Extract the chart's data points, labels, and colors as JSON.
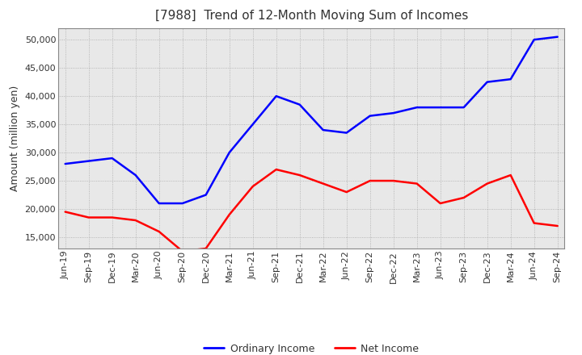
{
  "title": "[7988]  Trend of 12-Month Moving Sum of Incomes",
  "ylabel": "Amount (million yen)",
  "x_labels": [
    "Jun-19",
    "Sep-19",
    "Dec-19",
    "Mar-20",
    "Jun-20",
    "Sep-20",
    "Dec-20",
    "Mar-21",
    "Jun-21",
    "Sep-21",
    "Dec-21",
    "Mar-22",
    "Jun-22",
    "Sep-22",
    "Dec-22",
    "Mar-23",
    "Jun-23",
    "Sep-23",
    "Dec-23",
    "Mar-24",
    "Jun-24",
    "Sep-24"
  ],
  "ordinary_income": [
    28000,
    28500,
    29000,
    26000,
    21000,
    21000,
    22500,
    30000,
    35000,
    40000,
    38500,
    34000,
    33500,
    36500,
    37000,
    38000,
    38000,
    38000,
    42500,
    43000,
    50000,
    50500
  ],
  "net_income": [
    19500,
    18500,
    18500,
    18000,
    16000,
    12500,
    13000,
    19000,
    24000,
    27000,
    26000,
    24500,
    23000,
    25000,
    25000,
    24500,
    21000,
    22000,
    24500,
    26000,
    17500,
    17000
  ],
  "ordinary_color": "#0000ff",
  "net_color": "#ff0000",
  "ylim": [
    13000,
    52000
  ],
  "yticks": [
    15000,
    20000,
    25000,
    30000,
    35000,
    40000,
    45000,
    50000
  ],
  "plot_bg_color": "#e8e8e8",
  "fig_bg_color": "#ffffff",
  "grid_color": "#999999",
  "title_fontsize": 11,
  "axis_fontsize": 8,
  "legend_fontsize": 9,
  "line_width": 1.8,
  "title_color": "#333333",
  "tick_color": "#333333"
}
